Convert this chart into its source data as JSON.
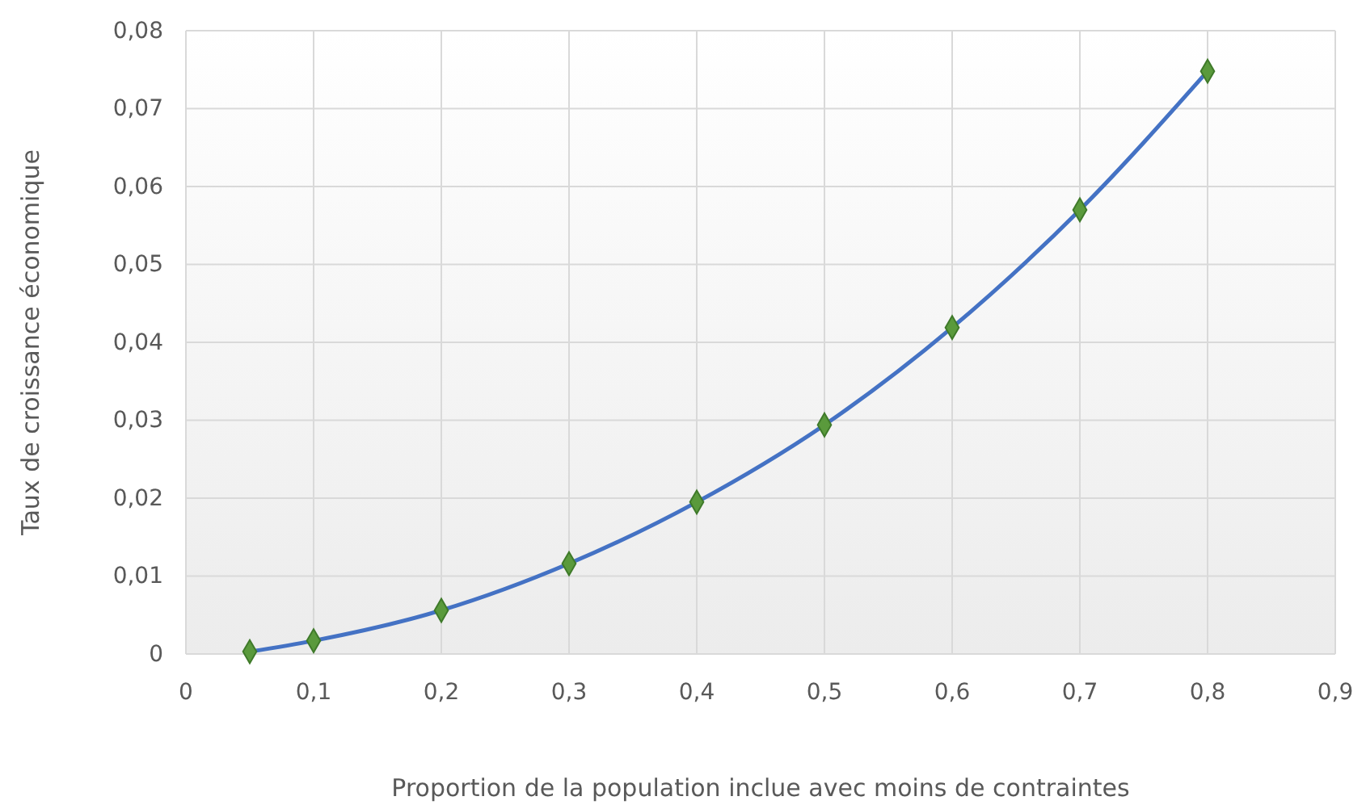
{
  "chart_data": {
    "type": "line",
    "xlabel": "Proportion de la population inclue avec moins de contraintes",
    "ylabel": "Taux de croissance économique",
    "x": [
      0.05,
      0.1,
      0.2,
      0.3,
      0.4,
      0.5,
      0.6,
      0.7,
      0.8
    ],
    "series": [
      {
        "color": "#4472c4",
        "values": [
          0.0003,
          0.0017,
          0.0056,
          0.0116,
          0.0195,
          0.0294,
          0.0419,
          0.057,
          0.0748
        ]
      }
    ],
    "marker": "diamond",
    "line_style": "solid",
    "grid": true,
    "xlim": [
      0,
      0.9
    ],
    "xticks": [
      0,
      {
        "value": 0.1,
        "label": "0,1"
      },
      {
        "value": 0.2,
        "label": "0,2"
      },
      {
        "value": 0.3,
        "label": "0,3"
      },
      {
        "value": 0.4,
        "label": "0,4"
      },
      {
        "value": 0.5,
        "label": "0,5"
      },
      {
        "value": 0.6,
        "label": "0,6"
      },
      {
        "value": 0.7,
        "label": "0,7"
      },
      {
        "value": 0.8,
        "label": "0,8"
      },
      {
        "value": 0.9,
        "label": "0,9"
      }
    ],
    "ylim": [
      0,
      0.08
    ],
    "yticks": [
      0,
      {
        "value": 0.01,
        "label": "0,01"
      },
      {
        "value": 0.02,
        "label": "0,02"
      },
      {
        "value": 0.03,
        "label": "0,03"
      },
      {
        "value": 0.04,
        "label": "0,04"
      },
      {
        "value": 0.05,
        "label": "0,05"
      },
      {
        "value": 0.06,
        "label": "0,06"
      },
      {
        "value": 0.07,
        "label": "0,07"
      },
      {
        "value": 0.08,
        "label": "0,08"
      }
    ]
  }
}
